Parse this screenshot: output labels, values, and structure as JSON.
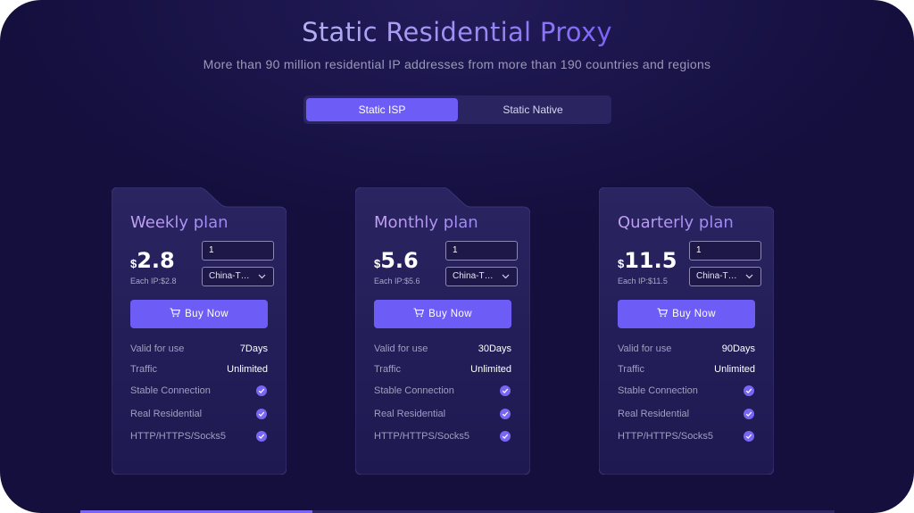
{
  "header": {
    "title": "Static Residential Proxy",
    "subtitle": "More than 90 million residential IP addresses from more than 190 countries and regions"
  },
  "tabs": [
    {
      "label": "Static ISP",
      "active": true
    },
    {
      "label": "Static Native",
      "active": false
    }
  ],
  "plans": [
    {
      "name": "Weekly plan",
      "currency": "$",
      "price": "2.8",
      "each_ip": "Each IP:$2.8",
      "quantity": "1",
      "region": "China-T…",
      "buy_label": "Buy Now",
      "valid_label": "Valid for use",
      "valid_value": "7Days",
      "traffic_label": "Traffic",
      "traffic_value": "Unlimited",
      "features": [
        "Stable Connection",
        "Real Residential",
        "HTTP/HTTPS/Socks5"
      ]
    },
    {
      "name": "Monthly plan",
      "currency": "$",
      "price": "5.6",
      "each_ip": "Each IP:$5.6",
      "quantity": "1",
      "region": "China-T…",
      "buy_label": "Buy Now",
      "valid_label": "Valid for use",
      "valid_value": "30Days",
      "traffic_label": "Traffic",
      "traffic_value": "Unlimited",
      "features": [
        "Stable Connection",
        "Real Residential",
        "HTTP/HTTPS/Socks5"
      ]
    },
    {
      "name": "Quarterly plan",
      "currency": "$",
      "price": "11.5",
      "each_ip": "Each IP:$11.5",
      "quantity": "1",
      "region": "China-T…",
      "buy_label": "Buy Now",
      "valid_label": "Valid for use",
      "valid_value": "90Days",
      "traffic_label": "Traffic",
      "traffic_value": "Unlimited",
      "features": [
        "Stable Connection",
        "Real Residential",
        "HTTP/HTTPS/Socks5"
      ]
    }
  ],
  "icons": {
    "cart": "cart-icon",
    "chevron": "chevron-down-icon",
    "check": "check-circle-icon"
  },
  "colors": {
    "background": "#140f3d",
    "accent": "#6e5cf6",
    "check": "#7a66f4"
  }
}
